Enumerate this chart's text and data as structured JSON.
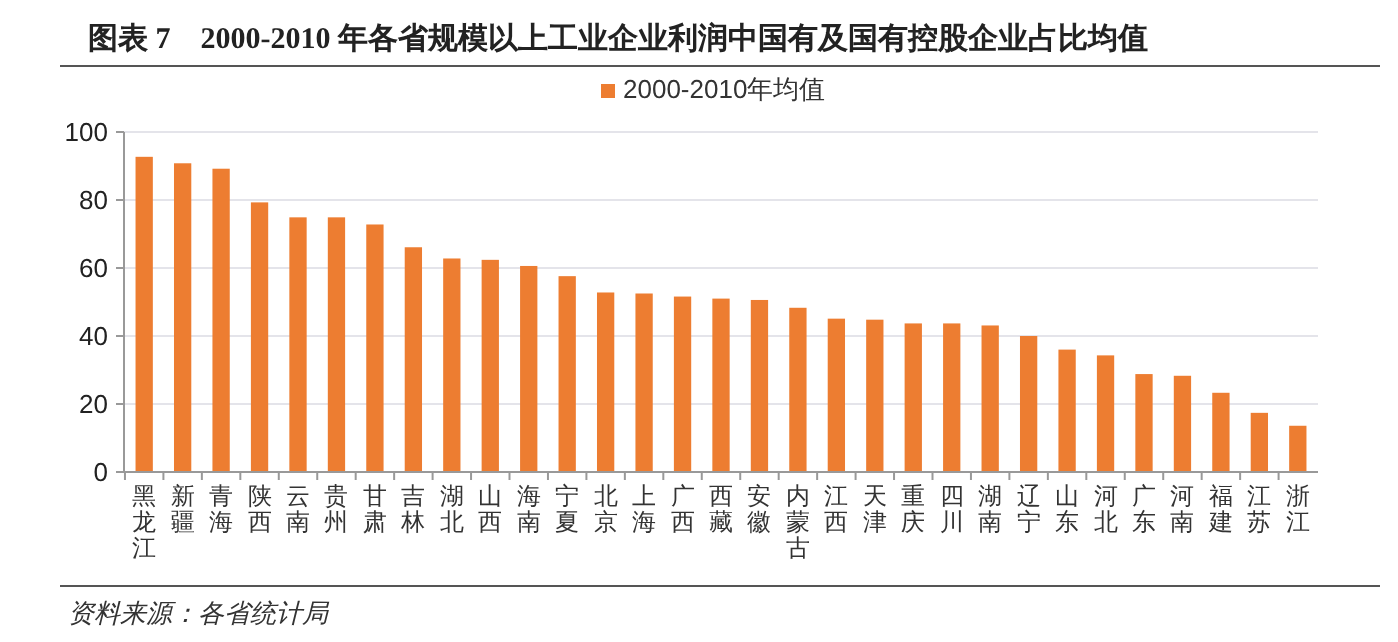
{
  "chart_data": {
    "type": "bar",
    "title": "图表 7　2000-2010 年各省规模以上工业企业利润中国有及国有控股企业占比均值",
    "categories": [
      "黑龙江",
      "新疆",
      "青海",
      "陕西",
      "云南",
      "贵州",
      "甘肃",
      "吉林",
      "湖北",
      "山西",
      "海南",
      "宁夏",
      "北京",
      "上海",
      "广西",
      "西藏",
      "安徽",
      "内蒙古",
      "江西",
      "天津",
      "重庆",
      "四川",
      "湖南",
      "辽宁",
      "山东",
      "河北",
      "广东",
      "河南",
      "福建",
      "江苏",
      "浙江"
    ],
    "series": [
      {
        "name": "2000-2010年均值",
        "color": "#ed7d31",
        "values": [
          92.7,
          90.8,
          89.2,
          79.3,
          74.9,
          74.9,
          72.8,
          66.1,
          62.8,
          62.4,
          60.6,
          57.6,
          52.8,
          52.5,
          51.6,
          51,
          50.6,
          48.3,
          45.1,
          44.8,
          43.7,
          43.7,
          43.1,
          40,
          36,
          34.3,
          28.8,
          28.3,
          23.3,
          17.4,
          13.6
        ]
      }
    ],
    "ylim": [
      0,
      100
    ],
    "yticks": [
      0,
      20,
      40,
      60,
      80,
      100
    ],
    "grid": "y",
    "legend": "top",
    "annotations": [
      "资料来源：各省统计局"
    ]
  }
}
